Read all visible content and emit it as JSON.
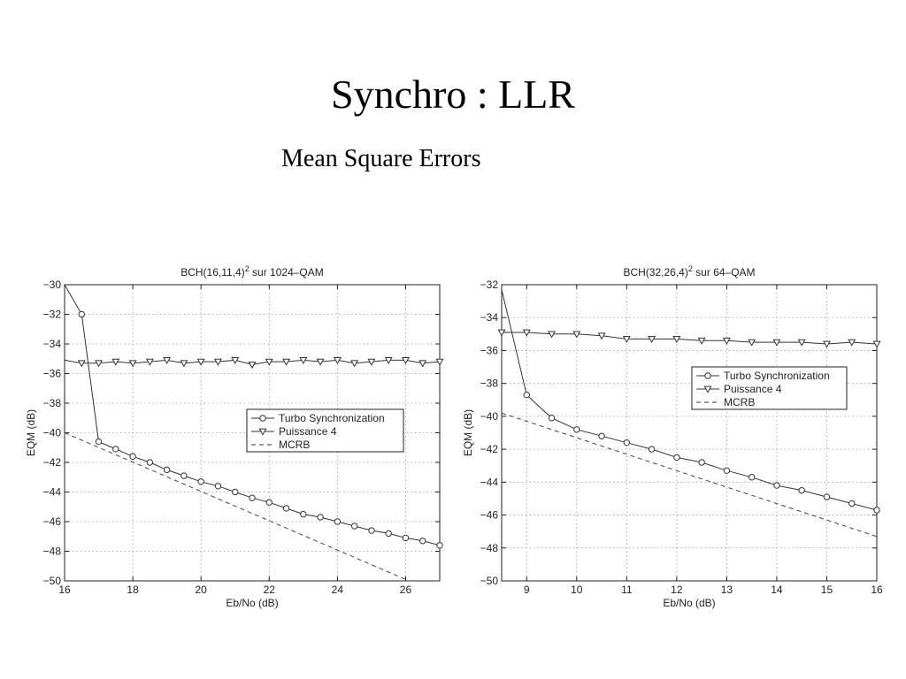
{
  "slide": {
    "title": "Synchro : LLR",
    "subtitle": "Mean Square Errors"
  },
  "chart_data": [
    {
      "type": "line",
      "title": "BCH(16,11,4)",
      "title_superscript": "2",
      "title_suffix": " sur 1024–QAM",
      "xlabel": "Eb/No (dB)",
      "ylabel": "EQM (dB)",
      "xlim": [
        16,
        27
      ],
      "ylim": [
        -50,
        -30
      ],
      "xticks": [
        16,
        18,
        20,
        22,
        24,
        26
      ],
      "yticks": [
        -30,
        -32,
        -34,
        -36,
        -38,
        -40,
        -42,
        -44,
        -46,
        -48,
        -50
      ],
      "grid": true,
      "legend_position": "center-right",
      "series": [
        {
          "name": "Turbo Synchronization",
          "marker": "circle",
          "dash": "solid",
          "x": [
            16,
            16.5,
            17,
            17.5,
            18,
            18.5,
            19,
            19.5,
            20,
            20.5,
            21,
            21.5,
            22,
            22.5,
            23,
            23.5,
            24,
            24.5,
            25,
            25.5,
            26,
            26.5,
            27
          ],
          "y": [
            -30,
            -32,
            -40.6,
            -41.1,
            -41.6,
            -42.0,
            -42.5,
            -42.9,
            -43.3,
            -43.6,
            -44.0,
            -44.4,
            -44.7,
            -45.1,
            -45.5,
            -45.7,
            -46.0,
            -46.3,
            -46.6,
            -46.8,
            -47.1,
            -47.3,
            -47.6
          ],
          "marker_from_index": 1
        },
        {
          "name": "Puissance 4",
          "marker": "triangle-down",
          "dash": "solid",
          "x": [
            16,
            16.5,
            17,
            17.5,
            18,
            18.5,
            19,
            19.5,
            20,
            20.5,
            21,
            21.5,
            22,
            22.5,
            23,
            23.5,
            24,
            24.5,
            25,
            25.5,
            26,
            26.5,
            27
          ],
          "y": [
            -35.1,
            -35.3,
            -35.3,
            -35.2,
            -35.3,
            -35.2,
            -35.1,
            -35.3,
            -35.2,
            -35.2,
            -35.1,
            -35.4,
            -35.2,
            -35.2,
            -35.1,
            -35.2,
            -35.1,
            -35.3,
            -35.2,
            -35.1,
            -35.1,
            -35.3,
            -35.2
          ],
          "marker_from_index": 1
        },
        {
          "name": "MCRB",
          "marker": "none",
          "dash": "dashed",
          "x": [
            16,
            26.1
          ],
          "y": [
            -40,
            -50
          ]
        }
      ]
    },
    {
      "type": "line",
      "title": "BCH(32,26,4)",
      "title_superscript": "2",
      "title_suffix": " sur 64–QAM",
      "xlabel": "Eb/No (dB)",
      "ylabel": "EQM (dB)",
      "xlim": [
        8.5,
        16
      ],
      "ylim": [
        -50,
        -32
      ],
      "xticks": [
        9,
        10,
        11,
        12,
        13,
        14,
        15,
        16
      ],
      "yticks": [
        -32,
        -34,
        -36,
        -38,
        -40,
        -42,
        -44,
        -46,
        -48,
        -50
      ],
      "grid": true,
      "legend_position": "top-right",
      "series": [
        {
          "name": "Turbo Synchronization",
          "marker": "circle",
          "dash": "solid",
          "x": [
            8.5,
            9,
            9.5,
            10,
            10.5,
            11,
            11.5,
            12,
            12.5,
            13,
            13.5,
            14,
            14.5,
            15,
            15.5,
            16
          ],
          "y": [
            -32.3,
            -38.7,
            -40.1,
            -40.8,
            -41.2,
            -41.6,
            -42.0,
            -42.5,
            -42.8,
            -43.3,
            -43.7,
            -44.2,
            -44.5,
            -44.9,
            -45.3,
            -45.7
          ],
          "marker_from_index": 1
        },
        {
          "name": "Puissance 4",
          "marker": "triangle-down",
          "dash": "solid",
          "x": [
            8.5,
            9,
            9.5,
            10,
            10.5,
            11,
            11.5,
            12,
            12.5,
            13,
            13.5,
            14,
            14.5,
            15,
            15.5,
            16
          ],
          "y": [
            -34.9,
            -34.9,
            -35.0,
            -35.0,
            -35.1,
            -35.3,
            -35.3,
            -35.3,
            -35.4,
            -35.4,
            -35.5,
            -35.5,
            -35.5,
            -35.6,
            -35.5,
            -35.6
          ],
          "marker_from_index": 0
        },
        {
          "name": "MCRB",
          "marker": "none",
          "dash": "dashed",
          "x": [
            8.5,
            16
          ],
          "y": [
            -39.8,
            -47.3
          ]
        }
      ]
    }
  ]
}
